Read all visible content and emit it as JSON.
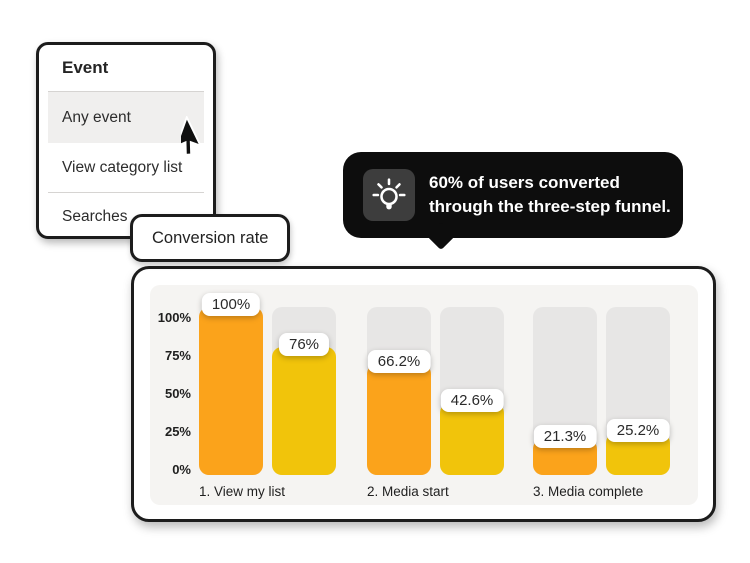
{
  "page": {
    "background": "#ffffff"
  },
  "menu": {
    "title": "Event",
    "items": [
      {
        "label": "Any event",
        "selected": true
      },
      {
        "label": "View category list",
        "selected": false
      },
      {
        "label": "Searches",
        "selected": false
      }
    ]
  },
  "tooltip": {
    "icon": "lightbulb-icon",
    "line1": "60% of users converted",
    "line2": "through the three-step funnel.",
    "bg_color": "#0d0d0d",
    "icon_bg_color": "#3d3d3d"
  },
  "rate_chip": {
    "label": "Conversion rate"
  },
  "chart_data": {
    "type": "bar",
    "title": "Conversion rate",
    "categories": [
      "1. View my list",
      "2. Media start",
      "3. Media complete"
    ],
    "series": [
      {
        "name": "series-1",
        "color": "#FBA31B",
        "values": [
          100,
          66.2,
          21.3
        ],
        "labels": [
          "100%",
          "66.2%",
          "21.3%"
        ]
      },
      {
        "name": "series-2",
        "color": "#F1C40B",
        "values": [
          76,
          42.6,
          25.2
        ],
        "labels": [
          "76%",
          "42.6%",
          "25.2%"
        ]
      }
    ],
    "yticks": [
      "100%",
      "75%",
      "50%",
      "25%",
      "0%"
    ],
    "ylim": [
      0,
      100
    ],
    "grid": false,
    "legend": false,
    "track_color": "#E7E6E5",
    "panel_color": "#F5F4F2"
  }
}
